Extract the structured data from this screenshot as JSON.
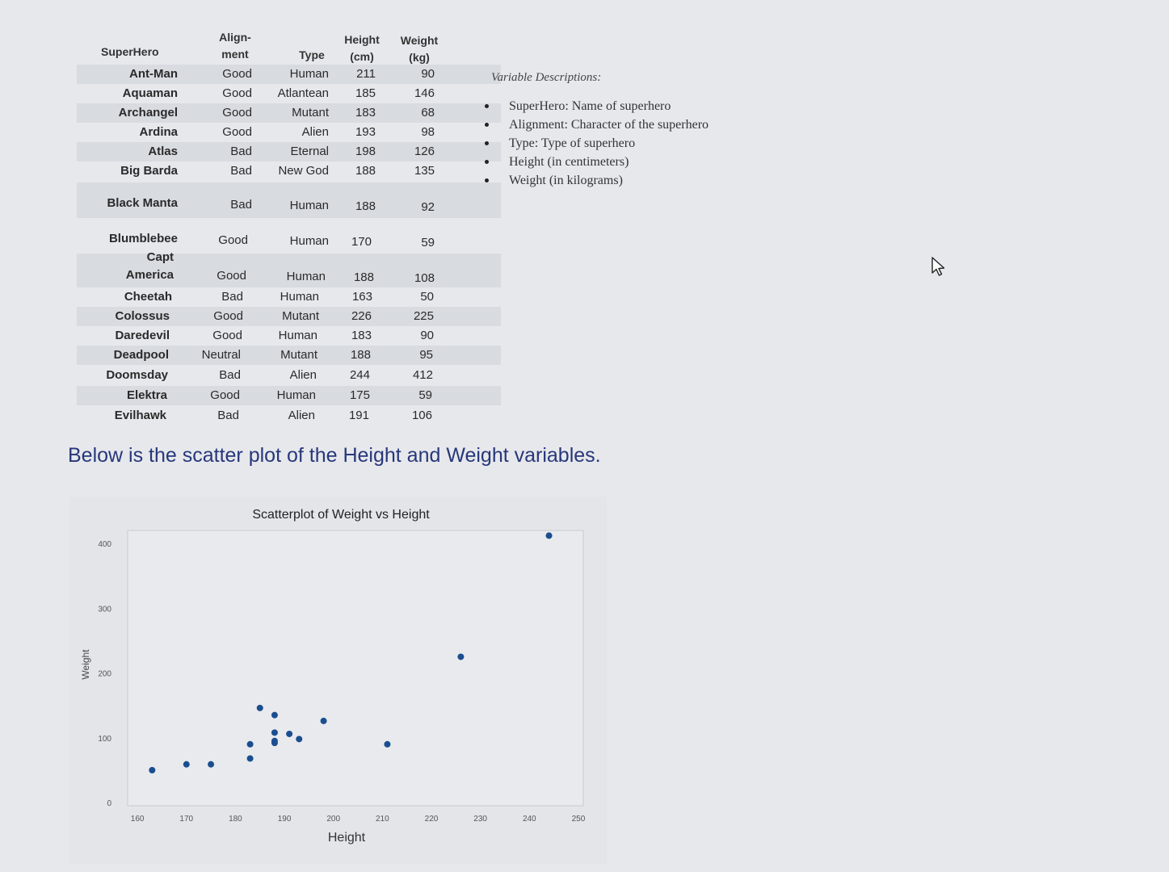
{
  "table": {
    "headers": {
      "name": "SuperHero",
      "align_line1": "Align-",
      "align_line2": "ment",
      "type": "Type",
      "height_line1": "Height",
      "height_line2": "(cm)",
      "weight_line1": "Weight",
      "weight_line2": "(kg)"
    },
    "rows": [
      {
        "name": "Ant-Man",
        "alignment": "Good",
        "type": "Human",
        "height": "211",
        "weight": "90"
      },
      {
        "name": "Aquaman",
        "alignment": "Good",
        "type": "Atlantean",
        "height": "185",
        "weight": "146"
      },
      {
        "name": "Archangel",
        "alignment": "Good",
        "type": "Mutant",
        "height": "183",
        "weight": "68"
      },
      {
        "name": "Ardina",
        "alignment": "Good",
        "type": "Alien",
        "height": "193",
        "weight": "98"
      },
      {
        "name": "Atlas",
        "alignment": "Bad",
        "type": "Eternal",
        "height": "198",
        "weight": "126"
      },
      {
        "name": "Big Barda",
        "alignment": "Bad",
        "type": "New God",
        "height": "188",
        "weight": "135"
      },
      {
        "name": "Black Manta",
        "alignment": "Bad",
        "type": "Human",
        "height": "188",
        "weight": "92"
      },
      {
        "name": "Blumblebee",
        "alignment": "Good",
        "type": "Human",
        "height": "170",
        "weight": "59"
      },
      {
        "name_line1": "Capt",
        "name": "America",
        "alignment": "Good",
        "type": "Human",
        "height": "188",
        "weight": "108"
      },
      {
        "name": "Cheetah",
        "alignment": "Bad",
        "type": "Human",
        "height": "163",
        "weight": "50"
      },
      {
        "name": "Colossus",
        "alignment": "Good",
        "type": "Mutant",
        "height": "226",
        "weight": "225"
      },
      {
        "name": "Daredevil",
        "alignment": "Good",
        "type": "Human",
        "height": "183",
        "weight": "90"
      },
      {
        "name": "Deadpool",
        "alignment": "Neutral",
        "type": "Mutant",
        "height": "188",
        "weight": "95"
      },
      {
        "name": "Doomsday",
        "alignment": "Bad",
        "type": "Alien",
        "height": "244",
        "weight": "412"
      },
      {
        "name": "Elektra",
        "alignment": "Good",
        "type": "Human",
        "height": "175",
        "weight": "59"
      },
      {
        "name": "Evilhawk",
        "alignment": "Bad",
        "type": "Alien",
        "height": "191",
        "weight": "106"
      }
    ]
  },
  "variable_descriptions": {
    "title": "Variable Descriptions:",
    "items": [
      "SuperHero: Name of superhero",
      "Alignment: Character of the superhero",
      "Type: Type of superhero",
      "Height (in centimeters)",
      "Weight (in kilograms)"
    ]
  },
  "caption": "Below is the scatter plot of the Height and Weight variables.",
  "chart_data": {
    "type": "scatter",
    "title": "Scatterplot of Weight vs Height",
    "xlabel": "Height",
    "ylabel": "Weight",
    "xlim": [
      158,
      251
    ],
    "ylim": [
      -5,
      420
    ],
    "xticks": [
      160,
      170,
      180,
      190,
      200,
      210,
      220,
      230,
      240,
      250
    ],
    "yticks": [
      0,
      100,
      200,
      300,
      400
    ],
    "grid": false,
    "color": "#1a4e8f",
    "points": [
      {
        "x": 211,
        "y": 90
      },
      {
        "x": 185,
        "y": 146
      },
      {
        "x": 183,
        "y": 68
      },
      {
        "x": 193,
        "y": 98
      },
      {
        "x": 198,
        "y": 126
      },
      {
        "x": 188,
        "y": 135
      },
      {
        "x": 188,
        "y": 92
      },
      {
        "x": 170,
        "y": 59
      },
      {
        "x": 188,
        "y": 108
      },
      {
        "x": 163,
        "y": 50
      },
      {
        "x": 226,
        "y": 225
      },
      {
        "x": 183,
        "y": 90
      },
      {
        "x": 188,
        "y": 95
      },
      {
        "x": 244,
        "y": 412
      },
      {
        "x": 175,
        "y": 59
      },
      {
        "x": 191,
        "y": 106
      }
    ]
  }
}
